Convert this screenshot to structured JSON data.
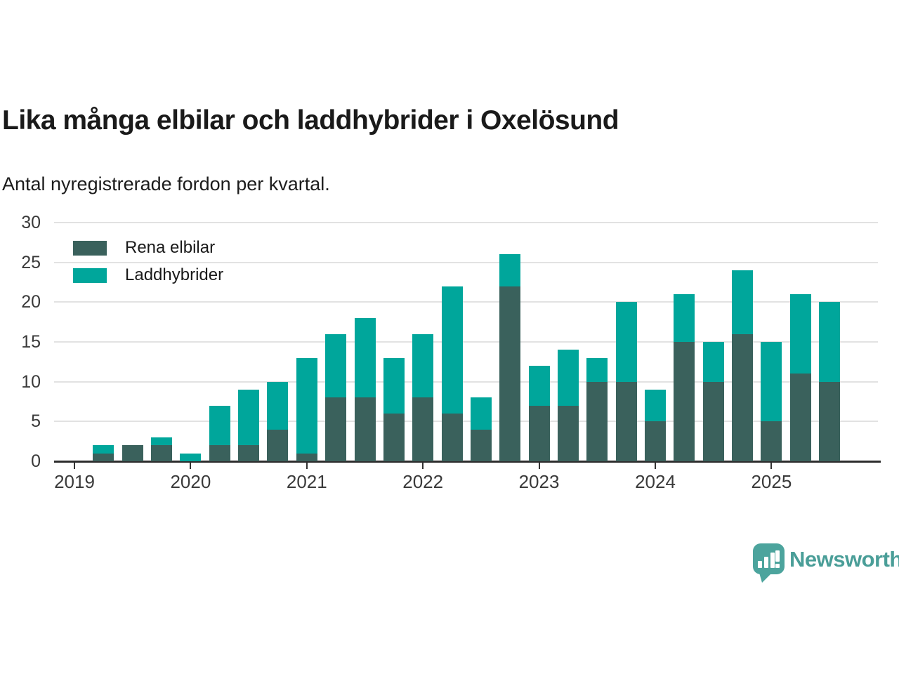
{
  "header": {
    "title": "Lika många elbilar och laddhybrider i Oxelösund",
    "subtitle": "Antal nyregistrerade fordon per kvartal."
  },
  "legend": {
    "items": [
      {
        "label": "Rena elbilar",
        "color": "#3a615c"
      },
      {
        "label": "Laddhybrider",
        "color": "#00a69b"
      }
    ]
  },
  "footer": {
    "brand": "Newsworthy",
    "brand_color": "#4a9e98",
    "logo_icon": "newsworthy-speech-bubble-chart-icon"
  },
  "chart_data": {
    "type": "bar",
    "stacked": true,
    "title": "Lika många elbilar och laddhybrider i Oxelösund",
    "subtitle": "Antal nyregistrerade fordon per kvartal.",
    "categories": [
      "2019 Q2",
      "2019 Q3",
      "2019 Q4",
      "2020 Q1",
      "2020 Q2",
      "2020 Q3",
      "2020 Q4",
      "2021 Q1",
      "2021 Q2",
      "2021 Q3",
      "2021 Q4",
      "2022 Q1",
      "2022 Q2",
      "2022 Q3",
      "2022 Q4",
      "2023 Q1",
      "2023 Q2",
      "2023 Q3",
      "2023 Q4",
      "2024 Q1",
      "2024 Q2",
      "2024 Q3",
      "2024 Q4",
      "2025 Q1",
      "2025 Q2",
      "2025 Q3"
    ],
    "series": [
      {
        "name": "Rena elbilar",
        "color": "#3a615c",
        "values": [
          1,
          2,
          2,
          0,
          2,
          2,
          4,
          1,
          8,
          8,
          6,
          8,
          6,
          4,
          22,
          7,
          7,
          10,
          10,
          5,
          15,
          10,
          16,
          5,
          11,
          10
        ]
      },
      {
        "name": "Laddhybrider",
        "color": "#00a69b",
        "values": [
          1,
          0,
          1,
          1,
          5,
          7,
          6,
          12,
          8,
          10,
          7,
          8,
          16,
          4,
          4,
          5,
          7,
          3,
          10,
          4,
          6,
          5,
          8,
          10,
          10,
          10
        ]
      }
    ],
    "totals": [
      2,
      2,
      3,
      1,
      7,
      9,
      10,
      13,
      16,
      18,
      13,
      16,
      22,
      8,
      26,
      12,
      14,
      13,
      20,
      9,
      21,
      15,
      24,
      15,
      21,
      20
    ],
    "ylim": [
      0,
      30
    ],
    "y_ticks": [
      0,
      5,
      10,
      15,
      20,
      25,
      30
    ],
    "x_tick_labels": [
      "2019",
      "2020",
      "2021",
      "2022",
      "2023",
      "2024",
      "2025"
    ],
    "grid": "horizontal",
    "legend_position": "top-left"
  }
}
